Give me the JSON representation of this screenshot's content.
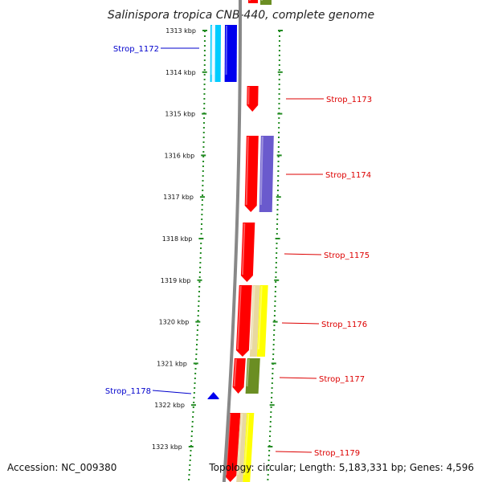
{
  "title": "Salinispora tropica CNB-440, complete genome",
  "footer": {
    "accession": "Accession: NC_009380",
    "summary": "Topology: circular; Length: 5,183,331 bp; Genes: 4,596"
  },
  "ticks": [
    "1313 kbp",
    "1314 kbp",
    "1315 kbp",
    "1316 kbp",
    "1317 kbp",
    "1318 kbp",
    "1319 kbp",
    "1320 kbp",
    "1321 kbp",
    "1322 kbp",
    "1323 kbp"
  ],
  "colors": {
    "backbone": "#888888",
    "tick_green": "#228b22",
    "forward_label": "#dd0000",
    "reverse_label": "#0000cc",
    "red": "#ff0000",
    "blue": "#0000ee",
    "cyan": "#00ccff",
    "purple": "#6a5acd",
    "yellow": "#ffff00",
    "olive": "#6b8e23",
    "tan": "#e8d8a0"
  },
  "genes": [
    {
      "label": "Strop_1172",
      "strand": "reverse"
    },
    {
      "label": "Strop_1173",
      "strand": "forward"
    },
    {
      "label": "Strop_1174",
      "strand": "forward"
    },
    {
      "label": "Strop_1175",
      "strand": "forward"
    },
    {
      "label": "Strop_1176",
      "strand": "forward"
    },
    {
      "label": "Strop_1177",
      "strand": "forward"
    },
    {
      "label": "Strop_1178",
      "strand": "reverse"
    },
    {
      "label": "Strop_1179",
      "strand": "forward"
    }
  ]
}
